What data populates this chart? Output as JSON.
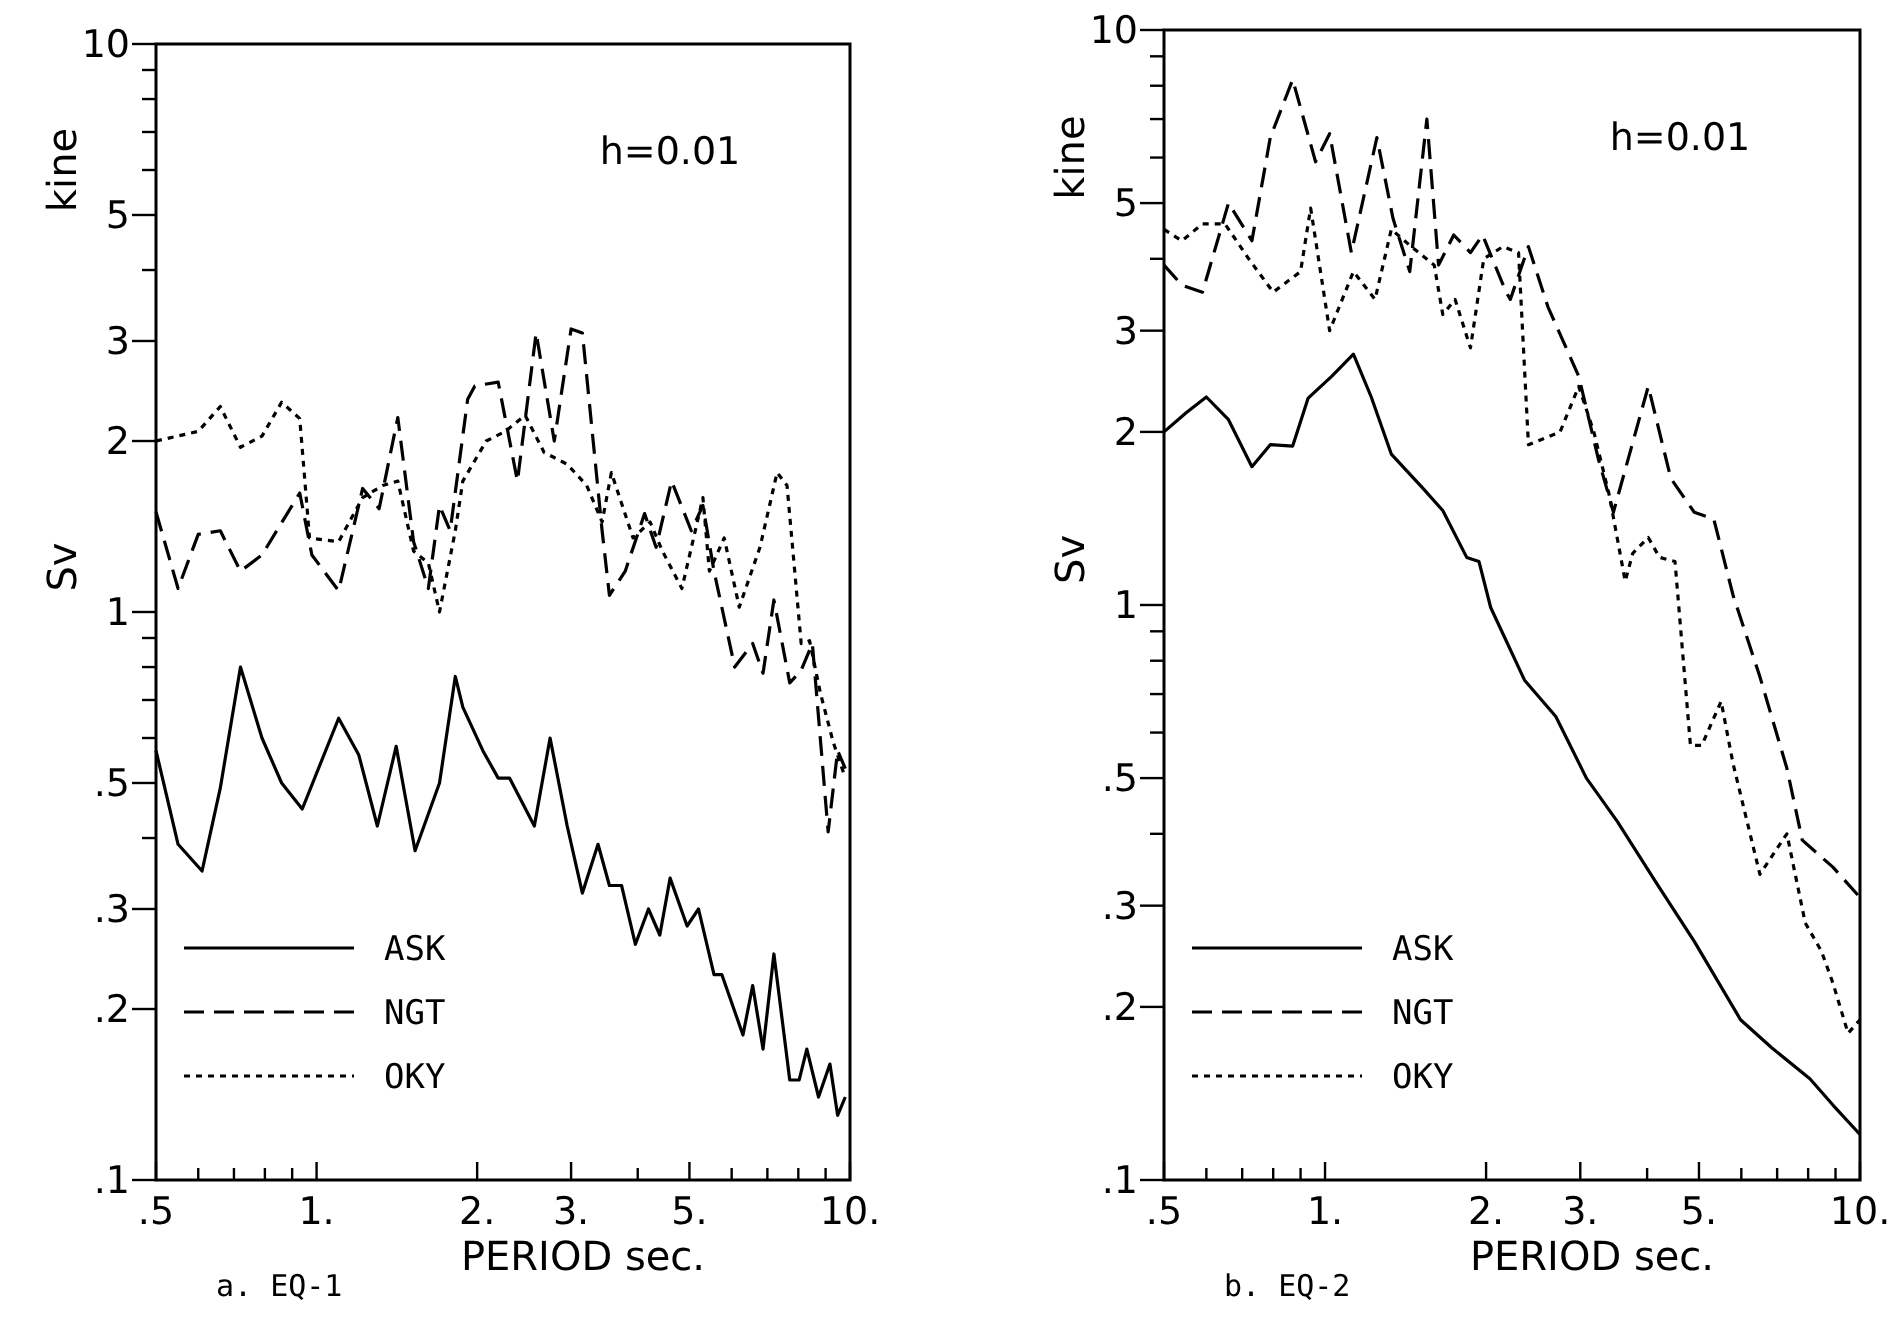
{
  "chart_data": [
    {
      "type": "line",
      "title": "a. EQ-1",
      "xlabel": "PERIOD sec.",
      "ylabel": "Sv",
      "annotations": [
        "h=0.01",
        "kine"
      ],
      "log": "xy",
      "grid": false,
      "legend": "bottom left",
      "xlim": [
        0.5,
        10
      ],
      "ylim": [
        0.1,
        10
      ],
      "xticks": [
        {
          "value": 0.5,
          "label": ".5"
        },
        {
          "value": 0.6,
          "label": null
        },
        {
          "value": 0.7,
          "label": null
        },
        {
          "value": 0.8,
          "label": null
        },
        {
          "value": 0.9,
          "label": null
        },
        {
          "value": 1,
          "label": "1."
        },
        {
          "value": 2,
          "label": "2."
        },
        {
          "value": 3,
          "label": "3."
        },
        {
          "value": 4,
          "label": null
        },
        {
          "value": 5,
          "label": "5."
        },
        {
          "value": 6,
          "label": null
        },
        {
          "value": 7,
          "label": null
        },
        {
          "value": 8,
          "label": null
        },
        {
          "value": 9,
          "label": null
        },
        {
          "value": 10,
          "label": "10."
        }
      ],
      "yticks": [
        {
          "value": 0.1,
          "label": ".1"
        },
        {
          "value": 0.2,
          "label": ".2"
        },
        {
          "value": 0.3,
          "label": ".3"
        },
        {
          "value": 0.4,
          "label": null
        },
        {
          "value": 0.5,
          "label": ".5"
        },
        {
          "value": 0.6,
          "label": null
        },
        {
          "value": 0.7,
          "label": null
        },
        {
          "value": 0.8,
          "label": null
        },
        {
          "value": 0.9,
          "label": null
        },
        1,
        2,
        3,
        {
          "value": 4,
          "label": null
        },
        5,
        {
          "value": 6,
          "label": null
        },
        {
          "value": 7,
          "label": null
        },
        {
          "value": 8,
          "label": null
        },
        {
          "value": 9,
          "label": null
        },
        10
      ],
      "series": [
        {
          "name": "ASK",
          "color": "#000000",
          "line_style": "solid",
          "x": [
            0.5,
            0.55,
            0.61,
            0.66,
            0.72,
            0.79,
            0.86,
            0.94,
            1.1,
            1.2,
            1.3,
            1.41,
            1.53,
            1.7,
            1.82,
            1.88,
            2.05,
            2.19,
            2.3,
            2.56,
            2.74,
            2.95,
            3.15,
            3.37,
            3.54,
            3.73,
            3.96,
            4.19,
            4.4,
            4.6,
            4.95,
            5.2,
            5.56,
            5.75,
            6.3,
            6.57,
            6.87,
            7.2,
            7.71,
            8.03,
            8.3,
            8.73,
            9.17,
            9.48,
            9.8
          ],
          "values": [
            0.57,
            0.39,
            0.35,
            0.49,
            0.8,
            0.6,
            0.5,
            0.45,
            0.65,
            0.56,
            0.42,
            0.58,
            0.38,
            0.5,
            0.77,
            0.68,
            0.57,
            0.51,
            0.51,
            0.42,
            0.6,
            0.42,
            0.32,
            0.39,
            0.33,
            0.33,
            0.26,
            0.3,
            0.27,
            0.34,
            0.28,
            0.3,
            0.23,
            0.23,
            0.18,
            0.22,
            0.17,
            0.25,
            0.15,
            0.15,
            0.17,
            0.14,
            0.16,
            0.13,
            0.14
          ]
        },
        {
          "name": "NGT",
          "color": "#000000",
          "line_style": "dashed",
          "x": [
            0.5,
            0.55,
            0.6,
            0.66,
            0.72,
            0.79,
            0.93,
            0.98,
            1.1,
            1.22,
            1.31,
            1.42,
            1.52,
            1.62,
            1.7,
            1.78,
            1.92,
            1.98,
            2.19,
            2.38,
            2.58,
            2.79,
            3.0,
            3.15,
            3.43,
            3.54,
            3.79,
            4.12,
            4.33,
            4.63,
            5.04,
            5.3,
            5.56,
            6.08,
            6.57,
            6.87,
            7.2,
            7.71,
            8.1,
            8.5,
            9.1,
            9.48,
            9.8
          ],
          "values": [
            1.5,
            1.1,
            1.37,
            1.39,
            1.18,
            1.26,
            1.62,
            1.26,
            1.09,
            1.65,
            1.52,
            2.2,
            1.33,
            1.1,
            1.54,
            1.39,
            2.37,
            2.5,
            2.54,
            1.7,
            3.1,
            2.0,
            3.15,
            3.1,
            1.39,
            1.07,
            1.18,
            1.49,
            1.3,
            1.7,
            1.39,
            1.54,
            1.18,
            0.8,
            0.88,
            0.78,
            1.05,
            0.75,
            0.79,
            0.88,
            0.41,
            0.57,
            0.53
          ]
        },
        {
          "name": "OKY",
          "color": "#000000",
          "line_style": "dotted",
          "x": [
            0.5,
            0.6,
            0.66,
            0.72,
            0.79,
            0.86,
            0.93,
            0.97,
            1.1,
            1.22,
            1.33,
            1.42,
            1.52,
            1.62,
            1.7,
            1.82,
            1.88,
            2.08,
            2.26,
            2.46,
            2.67,
            2.95,
            3.21,
            3.43,
            3.57,
            3.92,
            4.22,
            4.45,
            4.84,
            5.3,
            5.45,
            5.81,
            6.2,
            6.78,
            7.3,
            7.62,
            8.1,
            8.4,
            8.8,
            9.3,
            9.8
          ],
          "values": [
            2.0,
            2.08,
            2.3,
            1.95,
            2.04,
            2.34,
            2.19,
            1.35,
            1.33,
            1.59,
            1.67,
            1.7,
            1.28,
            1.22,
            1.0,
            1.39,
            1.7,
            2.0,
            2.08,
            2.22,
            1.91,
            1.82,
            1.67,
            1.44,
            1.76,
            1.35,
            1.44,
            1.28,
            1.1,
            1.59,
            1.18,
            1.35,
            1.02,
            1.3,
            1.76,
            1.67,
            0.88,
            0.89,
            0.72,
            0.59,
            0.51
          ]
        }
      ]
    },
    {
      "type": "line",
      "title": "b. EQ-2",
      "xlabel": "PERIOD sec.",
      "ylabel": "Sv",
      "annotations": [
        "h=0.01",
        "kine"
      ],
      "log": "xy",
      "grid": false,
      "legend": "bottom left",
      "xlim": [
        0.5,
        10
      ],
      "ylim": [
        0.1,
        10
      ],
      "xticks": [
        {
          "value": 0.5,
          "label": ".5"
        },
        {
          "value": 0.6,
          "label": null
        },
        {
          "value": 0.7,
          "label": null
        },
        {
          "value": 0.8,
          "label": null
        },
        {
          "value": 0.9,
          "label": null
        },
        {
          "value": 1,
          "label": "1."
        },
        {
          "value": 2,
          "label": "2."
        },
        {
          "value": 3,
          "label": "3."
        },
        {
          "value": 4,
          "label": null
        },
        {
          "value": 5,
          "label": "5."
        },
        {
          "value": 6,
          "label": null
        },
        {
          "value": 7,
          "label": null
        },
        {
          "value": 8,
          "label": null
        },
        {
          "value": 9,
          "label": null
        },
        {
          "value": 10,
          "label": "10."
        }
      ],
      "yticks": [
        {
          "value": 0.1,
          "label": ".1"
        },
        {
          "value": 0.2,
          "label": ".2"
        },
        {
          "value": 0.3,
          "label": ".3"
        },
        {
          "value": 0.4,
          "label": null
        },
        {
          "value": 0.5,
          "label": ".5"
        },
        {
          "value": 0.6,
          "label": null
        },
        {
          "value": 0.7,
          "label": null
        },
        {
          "value": 0.8,
          "label": null
        },
        {
          "value": 0.9,
          "label": null
        },
        1,
        2,
        3,
        {
          "value": 4,
          "label": null
        },
        5,
        {
          "value": 6,
          "label": null
        },
        {
          "value": 7,
          "label": null
        },
        {
          "value": 8,
          "label": null
        },
        {
          "value": 9,
          "label": null
        },
        10
      ],
      "series": [
        {
          "name": "ASK",
          "color": "#000000",
          "line_style": "solid",
          "x": [
            0.5,
            0.55,
            0.6,
            0.66,
            0.73,
            0.79,
            0.87,
            0.93,
            1.03,
            1.13,
            1.22,
            1.33,
            1.52,
            1.66,
            1.84,
            1.94,
            2.04,
            2.36,
            2.7,
            3.08,
            3.52,
            4.15,
            4.9,
            5.98,
            6.83,
            8.06,
            8.9,
            10
          ],
          "values": [
            2.0,
            2.16,
            2.3,
            2.1,
            1.74,
            1.9,
            1.89,
            2.29,
            2.5,
            2.73,
            2.3,
            1.83,
            1.6,
            1.46,
            1.21,
            1.19,
            0.99,
            0.74,
            0.64,
            0.5,
            0.42,
            0.33,
            0.26,
            0.19,
            0.17,
            0.15,
            0.135,
            0.12
          ]
        },
        {
          "name": "NGT",
          "color": "#000000",
          "line_style": "dashed",
          "x": [
            0.5,
            0.54,
            0.59,
            0.66,
            0.73,
            0.79,
            0.87,
            0.96,
            1.02,
            1.12,
            1.25,
            1.34,
            1.44,
            1.55,
            1.63,
            1.74,
            1.87,
            1.97,
            2.18,
            2.22,
            2.4,
            2.61,
            2.98,
            3.24,
            3.46,
            4.02,
            4.43,
            4.9,
            5.33,
            5.79,
            6.5,
            7.3,
            7.8,
            8.9,
            10
          ],
          "values": [
            3.9,
            3.6,
            3.5,
            5.0,
            4.3,
            6.5,
            8.2,
            5.9,
            6.6,
            4.1,
            6.5,
            4.7,
            3.8,
            7.0,
            3.9,
            4.4,
            4.1,
            4.4,
            3.5,
            3.4,
            4.2,
            3.3,
            2.5,
            1.8,
            1.45,
            2.4,
            1.66,
            1.45,
            1.41,
            1.04,
            0.75,
            0.52,
            0.39,
            0.35,
            0.31
          ]
        },
        {
          "name": "OKY",
          "color": "#000000",
          "line_style": "dotted",
          "x": [
            0.5,
            0.54,
            0.59,
            0.65,
            0.72,
            0.8,
            0.9,
            0.94,
            1.02,
            1.13,
            1.24,
            1.33,
            1.45,
            1.6,
            1.66,
            1.75,
            1.87,
            1.98,
            2.15,
            2.3,
            2.4,
            2.75,
            2.98,
            3.18,
            3.4,
            3.64,
            3.76,
            4.02,
            4.22,
            4.51,
            4.82,
            5.06,
            5.5,
            5.79,
            6.5,
            7.3,
            7.9,
            8.47,
            8.9,
            9.5,
            10
          ],
          "values": [
            4.5,
            4.3,
            4.6,
            4.6,
            4.0,
            3.5,
            3.8,
            4.9,
            3.0,
            3.8,
            3.4,
            4.5,
            4.2,
            3.9,
            3.2,
            3.4,
            2.8,
            4.0,
            4.2,
            4.1,
            1.9,
            2.0,
            2.4,
            2.0,
            1.55,
            1.1,
            1.23,
            1.31,
            1.21,
            1.19,
            0.57,
            0.57,
            0.68,
            0.53,
            0.34,
            0.4,
            0.28,
            0.25,
            0.22,
            0.18,
            0.19
          ]
        }
      ]
    }
  ]
}
